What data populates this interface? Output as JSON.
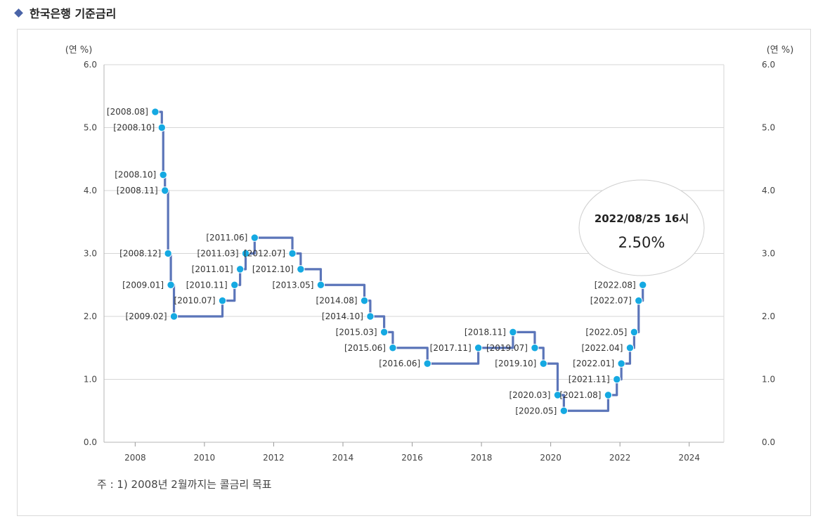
{
  "header": {
    "title": "한국은행 기준금리",
    "marker_icon": "diamond-icon"
  },
  "footnote": "주 : 1) 2008년 2월까지는 콜금리 목표",
  "tooltip": {
    "date": "2022/08/25 16시",
    "value": "2.50%"
  },
  "chart_data": {
    "type": "line",
    "step": true,
    "unit_left": "(연 %)",
    "unit_right": "(연 %)",
    "ylim": [
      0,
      6
    ],
    "y_ticks": [
      "0.0",
      "1.0",
      "2.0",
      "3.0",
      "4.0",
      "5.0",
      "6.0"
    ],
    "xlim": [
      2007.1,
      2025
    ],
    "x_ticks": [
      "2008",
      "2010",
      "2012",
      "2014",
      "2016",
      "2018",
      "2020",
      "2022",
      "2024"
    ],
    "line_color": "#5b75b9",
    "point_color": "#15a9e2",
    "points": [
      {
        "label": "[2008.08]",
        "x": 2008.58,
        "y": 5.25
      },
      {
        "label": "[2008.10]",
        "x": 2008.77,
        "y": 5.0
      },
      {
        "label": "[2008.10]",
        "x": 2008.81,
        "y": 4.25
      },
      {
        "label": "[2008.11]",
        "x": 2008.86,
        "y": 4.0
      },
      {
        "label": "[2008.12]",
        "x": 2008.95,
        "y": 3.0
      },
      {
        "label": "[2009.01]",
        "x": 2009.03,
        "y": 2.5
      },
      {
        "label": "[2009.02]",
        "x": 2009.12,
        "y": 2.0
      },
      {
        "label": "[2010.07]",
        "x": 2010.52,
        "y": 2.25
      },
      {
        "label": "[2010.11]",
        "x": 2010.87,
        "y": 2.5
      },
      {
        "label": "[2011.01]",
        "x": 2011.03,
        "y": 2.75
      },
      {
        "label": "[2011.03]",
        "x": 2011.19,
        "y": 3.0
      },
      {
        "label": "[2011.06]",
        "x": 2011.45,
        "y": 3.25
      },
      {
        "label": "[2012.07]",
        "x": 2012.54,
        "y": 3.0
      },
      {
        "label": "[2012.10]",
        "x": 2012.78,
        "y": 2.75
      },
      {
        "label": "[2013.05]",
        "x": 2013.36,
        "y": 2.5
      },
      {
        "label": "[2014.08]",
        "x": 2014.62,
        "y": 2.25
      },
      {
        "label": "[2014.10]",
        "x": 2014.79,
        "y": 2.0
      },
      {
        "label": "[2015.03]",
        "x": 2015.19,
        "y": 1.75
      },
      {
        "label": "[2015.06]",
        "x": 2015.44,
        "y": 1.5
      },
      {
        "label": "[2016.06]",
        "x": 2016.44,
        "y": 1.25
      },
      {
        "label": "[2017.11]",
        "x": 2017.91,
        "y": 1.5
      },
      {
        "label": "[2018.11]",
        "x": 2018.91,
        "y": 1.75
      },
      {
        "label": "[2019.07]",
        "x": 2019.54,
        "y": 1.5
      },
      {
        "label": "[2019.10]",
        "x": 2019.79,
        "y": 1.25
      },
      {
        "label": "[2020.03]",
        "x": 2020.2,
        "y": 0.75
      },
      {
        "label": "[2020.05]",
        "x": 2020.38,
        "y": 0.5
      },
      {
        "label": "[2021.08]",
        "x": 2021.66,
        "y": 0.75
      },
      {
        "label": "[2021.11]",
        "x": 2021.91,
        "y": 1.0
      },
      {
        "label": "[2022.01]",
        "x": 2022.04,
        "y": 1.25
      },
      {
        "label": "[2022.04]",
        "x": 2022.29,
        "y": 1.5
      },
      {
        "label": "[2022.05]",
        "x": 2022.41,
        "y": 1.75
      },
      {
        "label": "[2022.07]",
        "x": 2022.54,
        "y": 2.25
      },
      {
        "label": "[2022.08]",
        "x": 2022.66,
        "y": 2.5
      }
    ]
  }
}
